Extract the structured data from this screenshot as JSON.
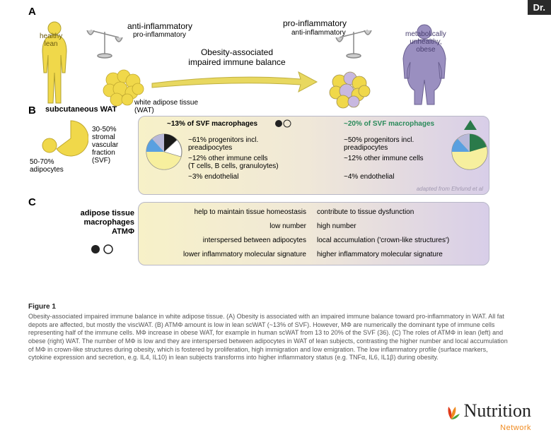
{
  "badge": "Dr.",
  "panelA": {
    "letter": "A",
    "healthy_label": "healthy\nlean",
    "obese_label": "metabolically\nunhealthy,\nobese",
    "healthy_color": "#f0d84a",
    "obese_color": "#9a8fc0",
    "scale_left": {
      "top": "anti-inflammatory",
      "bottom": "pro-inflammatory"
    },
    "scale_right": {
      "top": "pro-inflammatory",
      "bottom": "anti-inflammatory"
    },
    "arrow_text": "Obesity-associated\nimpaired immune balance",
    "arrow_color": "#e8d860",
    "wat_label": "white adipose tissue\n(WAT)"
  },
  "panelB": {
    "letter": "B",
    "title": "subcutaneous WAT",
    "adipocyte_pct": "50-70%\nadipocytes",
    "svf_pct": "30-50%\nstromal\nvascular\nfraction\n(SVF)",
    "left": {
      "header": "~13% of SVF macrophages",
      "rows": [
        "~61% progenitors incl.\npreadipocytes",
        "~12% other immune cells\n(T cells, B cells, granuloytes)",
        "~3% endothelial"
      ],
      "pie": {
        "slices": [
          {
            "color": "#1a1a1a",
            "pct": 13
          },
          {
            "color": "#f7ef9e",
            "pct": 61
          },
          {
            "color": "#5aa0e0",
            "pct": 12
          },
          {
            "color": "#b8b8d8",
            "pct": 3
          },
          {
            "color": "#ffffff",
            "pct": 11
          }
        ]
      }
    },
    "right": {
      "header": "~20% of SVF macrophages",
      "header_color": "#2a8a5a",
      "rows": [
        "~50% progenitors incl.\npreadipocytes",
        "~12% other immune cells",
        "~4% endothelial"
      ],
      "pie": {
        "slices": [
          {
            "color": "#2a7a4a",
            "pct": 20
          },
          {
            "color": "#f7ef9e",
            "pct": 50
          },
          {
            "color": "#5aa0e0",
            "pct": 12
          },
          {
            "color": "#b8b8d8",
            "pct": 4
          },
          {
            "color": "#ffffff",
            "pct": 14
          }
        ]
      }
    },
    "credit": "adapted from Ehrlund et al"
  },
  "panelC": {
    "letter": "C",
    "side_label": "adipose tissue\nmacrophages\nATMΦ",
    "left_col": [
      "help to maintain tissue homeostasis",
      "low number",
      "interspersed between adipocytes",
      "lower inflammatory molecular signature"
    ],
    "right_col": [
      "contribute to tissue dysfunction",
      "high number",
      "local accumulation ('crown-like structures')",
      "higher inflammatory molecular signature"
    ]
  },
  "caption": {
    "title": "Figure 1",
    "body": "Obesity-associated impaired immune balance in white adipose tissue. (A) Obesity is associated with an impaired immune balance toward pro-inflammatory in WAT. All fat depots are affected, but mostly the viscWAT. (B) ATMΦ amount is low in lean scWAT (~13% of SVF). However, MΦ are numerically the dominant type of immune cells representing half of the immune cells. MΦ increase in obese WAT, for example in human scWAT from 13 to 20% of the SVF (36). (C) The roles of ATMΦ in lean (left) and obese (right) WAT. The number of MΦ is low and they are interspersed between adipocytes in WAT of lean subjects, contrasting the higher number and local accumulation of MΦ in crown-like structures during obesity, which is fostered by proliferation, high immigration and low emigration. The low inflammatory profile (surface markers, cytokine expression and secretion, e.g. IL4, IL10) in lean subjects transforms into higher inflammatory status (e.g. TNFα, IL6, IL1β) during obesity."
  },
  "logo": {
    "word": "Nutrition",
    "sub": "Network",
    "leaf_colors": [
      "#e03a1a",
      "#f08a1e",
      "#4aa03a"
    ]
  }
}
